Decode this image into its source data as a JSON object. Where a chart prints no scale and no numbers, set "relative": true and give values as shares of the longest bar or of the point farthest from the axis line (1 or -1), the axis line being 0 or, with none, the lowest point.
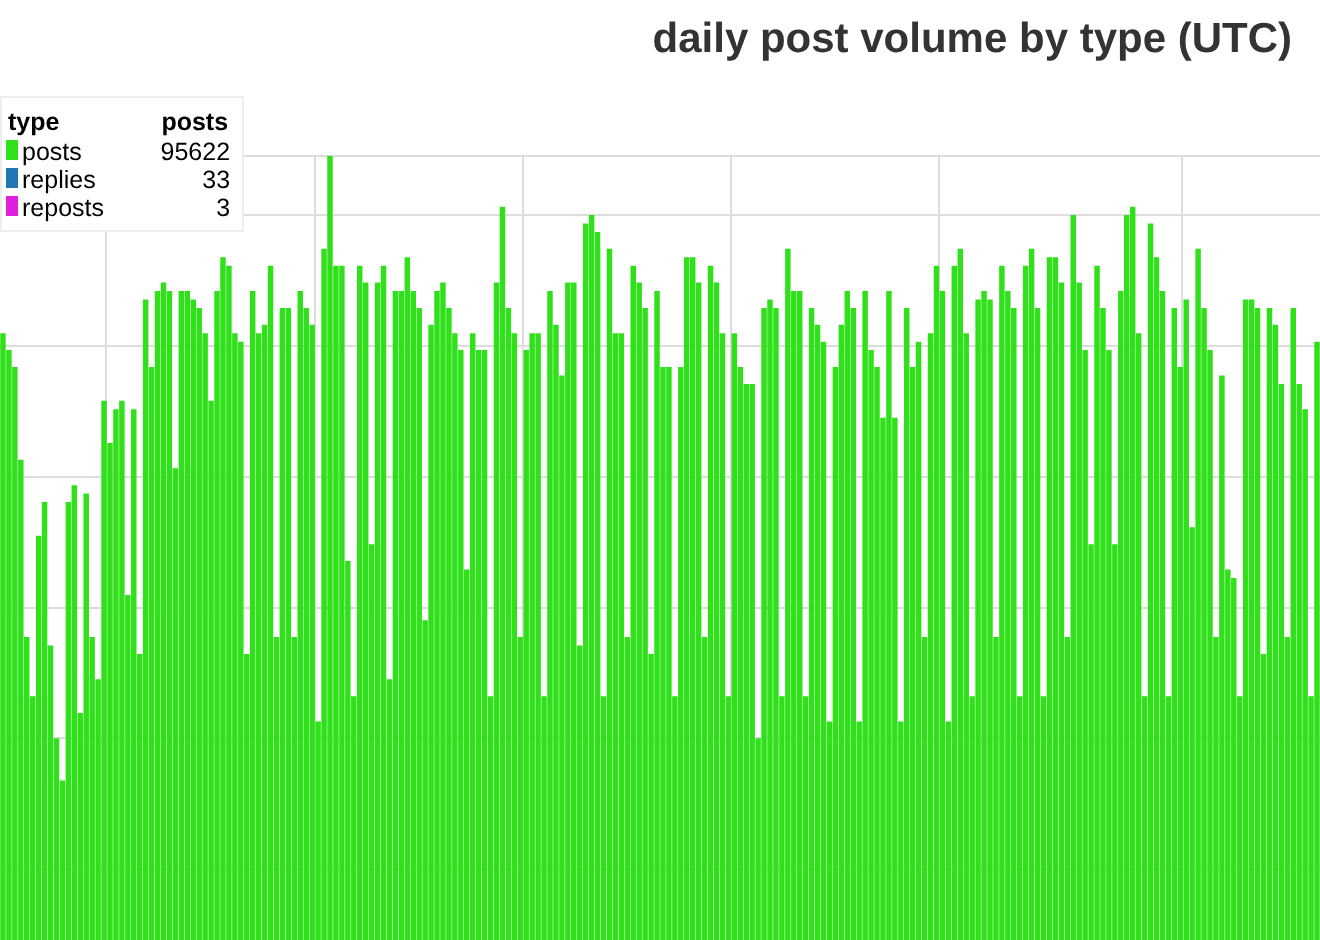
{
  "chart_data": {
    "type": "bar",
    "title": "daily post volume by type (UTC)",
    "legend_title": "type",
    "relative": true,
    "stacked": true,
    "grid": true,
    "legend": "top left",
    "annotations": [
      "posts",
      "95622",
      "33",
      "3"
    ],
    "categories": [
      null,
      null,
      null,
      null,
      null,
      null,
      null,
      null,
      null,
      null,
      null,
      null,
      null,
      null,
      null,
      null,
      null,
      null,
      null,
      null,
      null,
      null,
      null,
      null,
      null,
      null,
      null,
      null,
      null,
      null,
      null,
      null,
      null,
      null,
      null,
      null,
      null,
      null,
      null,
      null,
      null,
      null,
      null,
      null,
      null,
      null,
      null,
      null,
      null,
      null,
      null,
      null,
      null,
      null,
      null,
      null,
      null,
      null,
      null,
      null,
      null,
      null,
      null,
      null,
      null,
      null,
      null,
      null,
      null,
      null,
      null,
      null,
      null,
      null,
      null,
      null,
      null,
      null,
      null,
      null,
      null,
      null,
      null,
      null,
      null,
      null,
      null,
      null,
      null,
      null,
      null,
      null,
      null,
      null,
      null,
      null,
      null,
      null,
      null,
      null,
      null,
      null,
      null,
      null,
      null,
      null,
      null,
      null,
      null,
      null,
      null,
      null,
      null,
      null,
      null,
      null,
      null,
      null,
      null,
      null,
      null,
      null,
      null,
      null,
      null,
      null,
      null,
      null,
      null,
      null,
      null,
      null,
      null,
      null,
      null,
      null,
      null,
      null,
      null,
      null,
      null,
      null,
      null,
      null,
      null,
      null,
      null,
      null,
      null,
      null,
      null,
      null,
      null,
      null,
      null,
      null,
      null,
      null,
      null,
      null,
      null,
      null,
      null,
      null,
      null,
      null,
      null,
      null,
      null,
      null,
      null,
      null,
      null,
      null,
      null,
      null,
      null,
      null,
      null,
      null,
      null,
      null,
      null,
      null,
      null,
      null,
      null,
      null,
      null,
      null,
      null,
      null,
      null,
      null,
      null,
      null,
      null,
      null,
      null,
      null,
      null,
      null,
      null,
      null,
      null,
      null,
      null,
      null,
      null,
      null,
      null,
      null,
      null,
      null,
      null,
      null,
      null,
      null,
      null,
      null,
      null,
      null
    ],
    "series": [
      {
        "name": "posts",
        "color": "#2fe01a",
        "values": [
          0.79,
          0.77,
          0.75,
          0.64,
          0.43,
          0.36,
          0.55,
          0.59,
          0.42,
          0.31,
          0.26,
          0.59,
          0.61,
          0.34,
          0.6,
          0.43,
          0.38,
          0.71,
          0.66,
          0.7,
          0.71,
          0.48,
          0.7,
          0.41,
          0.83,
          0.75,
          0.84,
          0.85,
          0.84,
          0.63,
          0.84,
          0.84,
          0.83,
          0.82,
          0.79,
          0.71,
          0.84,
          0.88,
          0.87,
          0.79,
          0.78,
          0.41,
          0.84,
          0.79,
          0.8,
          0.87,
          0.43,
          0.82,
          0.82,
          0.43,
          0.84,
          0.82,
          0.8,
          0.33,
          0.89,
          1,
          0.87,
          0.87,
          0.52,
          0.36,
          0.87,
          0.85,
          0.54,
          0.85,
          0.87,
          0.38,
          0.84,
          0.84,
          0.88,
          0.84,
          0.82,
          0.45,
          0.8,
          0.84,
          0.85,
          0.82,
          0.79,
          0.77,
          0.51,
          0.79,
          0.77,
          0.77,
          0.36,
          0.85,
          0.94,
          0.82,
          0.79,
          0.43,
          0.77,
          0.79,
          0.79,
          0.36,
          0.84,
          0.8,
          0.74,
          0.85,
          0.85,
          0.42,
          0.92,
          0.93,
          0.91,
          0.36,
          0.89,
          0.79,
          0.79,
          0.43,
          0.87,
          0.85,
          0.82,
          0.41,
          0.84,
          0.75,
          0.75,
          0.36,
          0.75,
          0.88,
          0.88,
          0.85,
          0.43,
          0.87,
          0.85,
          0.79,
          0.36,
          0.79,
          0.75,
          0.73,
          0.73,
          0.31,
          0.82,
          0.83,
          0.82,
          0.36,
          0.89,
          0.84,
          0.84,
          0.36,
          0.82,
          0.8,
          0.78,
          0.33,
          0.75,
          0.8,
          0.84,
          0.82,
          0.33,
          0.84,
          0.77,
          0.75,
          0.69,
          0.84,
          0.69,
          0.33,
          0.82,
          0.75,
          0.78,
          0.43,
          0.79,
          0.87,
          0.84,
          0.33,
          0.87,
          0.89,
          0.79,
          0.36,
          0.83,
          0.84,
          0.83,
          0.43,
          0.87,
          0.84,
          0.82,
          0.36,
          0.87,
          0.89,
          0.82,
          0.36,
          0.88,
          0.88,
          0.85,
          0.43,
          0.93,
          0.85,
          0.77,
          0.54,
          0.87,
          0.82,
          0.77,
          0.54,
          0.84,
          0.93,
          0.94,
          0.79,
          0.36,
          0.92,
          0.88,
          0.84,
          0.36,
          0.82,
          0.75,
          0.83,
          0.56,
          0.89,
          0.82,
          0.77,
          0.43,
          0.74,
          0.51,
          0.5,
          0.36,
          0.83,
          0.83,
          0.82,
          0.41,
          0.82,
          0.8,
          0.73,
          0.43,
          0.82,
          0.73,
          0.7,
          0.36,
          0.78
        ]
      },
      {
        "name": "replies",
        "color": "#1f77b4",
        "values": [
          null,
          null,
          null,
          null,
          null,
          null,
          null,
          null,
          null,
          null,
          null,
          null,
          null,
          null,
          null,
          null,
          null,
          null,
          null,
          null,
          null,
          null,
          null,
          null,
          null,
          null,
          null,
          null,
          null,
          null,
          null,
          null,
          null,
          null,
          null,
          null,
          null,
          null,
          null,
          null,
          null,
          null,
          null,
          null,
          null,
          null,
          null,
          null,
          null,
          null,
          null,
          null,
          null,
          null,
          null,
          null,
          null,
          null,
          null,
          null,
          null,
          null,
          null,
          null,
          null,
          null,
          null,
          null,
          null,
          null,
          null,
          null,
          null,
          null,
          null,
          null,
          null,
          null,
          null,
          null,
          null,
          null,
          null,
          null,
          null,
          null,
          null,
          null,
          null,
          null,
          null,
          null,
          null,
          null,
          null,
          null,
          null,
          null,
          null,
          null,
          null,
          null,
          null,
          null,
          null,
          null,
          null,
          null,
          null,
          null,
          null,
          null,
          null,
          null,
          null,
          null,
          null,
          null,
          null,
          null,
          null,
          null,
          null,
          null,
          null,
          null,
          null,
          null,
          null,
          null,
          null,
          null,
          null,
          null,
          null,
          null,
          null,
          null,
          null,
          null,
          null,
          null,
          null,
          null,
          null,
          null,
          null,
          null,
          null,
          null,
          null,
          null,
          null,
          null,
          null,
          null,
          null,
          null,
          null,
          null,
          null,
          null,
          null,
          null,
          null,
          null,
          null,
          null,
          null,
          null,
          null,
          null,
          null,
          null,
          null,
          null,
          null,
          null,
          null,
          null,
          null,
          null,
          null,
          null,
          null,
          null,
          null,
          null,
          null,
          null,
          null,
          null,
          null,
          null,
          null,
          null,
          null,
          null,
          null,
          null,
          null,
          null,
          null,
          null,
          null,
          null,
          null,
          null,
          null,
          null,
          null,
          null,
          null,
          null,
          null,
          null,
          null,
          null,
          null,
          null,
          null,
          null
        ]
      },
      {
        "name": "reposts",
        "color": "#e020e0",
        "values": [
          null,
          null,
          null,
          null,
          null,
          null,
          null,
          null,
          null,
          null,
          null,
          null,
          null,
          null,
          null,
          null,
          null,
          null,
          null,
          null,
          null,
          null,
          null,
          null,
          null,
          null,
          null,
          null,
          null,
          null,
          null,
          null,
          null,
          null,
          null,
          null,
          null,
          null,
          null,
          null,
          null,
          null,
          null,
          null,
          null,
          null,
          null,
          null,
          null,
          null,
          null,
          null,
          null,
          null,
          null,
          null,
          null,
          null,
          null,
          null,
          null,
          null,
          null,
          null,
          null,
          null,
          null,
          null,
          null,
          null,
          null,
          null,
          null,
          null,
          null,
          null,
          null,
          null,
          null,
          null,
          null,
          null,
          null,
          null,
          null,
          null,
          null,
          null,
          null,
          null,
          null,
          null,
          null,
          null,
          null,
          null,
          null,
          null,
          null,
          null,
          null,
          null,
          null,
          null,
          null,
          null,
          null,
          null,
          null,
          null,
          null,
          null,
          null,
          null,
          null,
          null,
          null,
          null,
          null,
          null,
          null,
          null,
          null,
          null,
          null,
          null,
          null,
          null,
          null,
          null,
          null,
          null,
          null,
          null,
          null,
          null,
          null,
          null,
          null,
          null,
          null,
          null,
          null,
          null,
          null,
          null,
          null,
          null,
          null,
          null,
          null,
          null,
          null,
          null,
          null,
          null,
          null,
          null,
          null,
          null,
          null,
          null,
          null,
          null,
          null,
          null,
          null,
          null,
          null,
          null,
          null,
          null,
          null,
          null,
          null,
          null,
          null,
          null,
          null,
          null,
          null,
          null,
          null,
          null,
          null,
          null,
          null,
          null,
          null,
          null,
          null,
          null,
          null,
          null,
          null,
          null,
          null,
          null,
          null,
          null,
          null,
          null,
          null,
          null,
          null,
          null,
          null,
          null,
          null,
          null,
          null,
          null,
          null,
          null,
          null,
          null,
          null,
          null,
          null,
          null,
          null,
          null
        ]
      }
    ]
  }
}
